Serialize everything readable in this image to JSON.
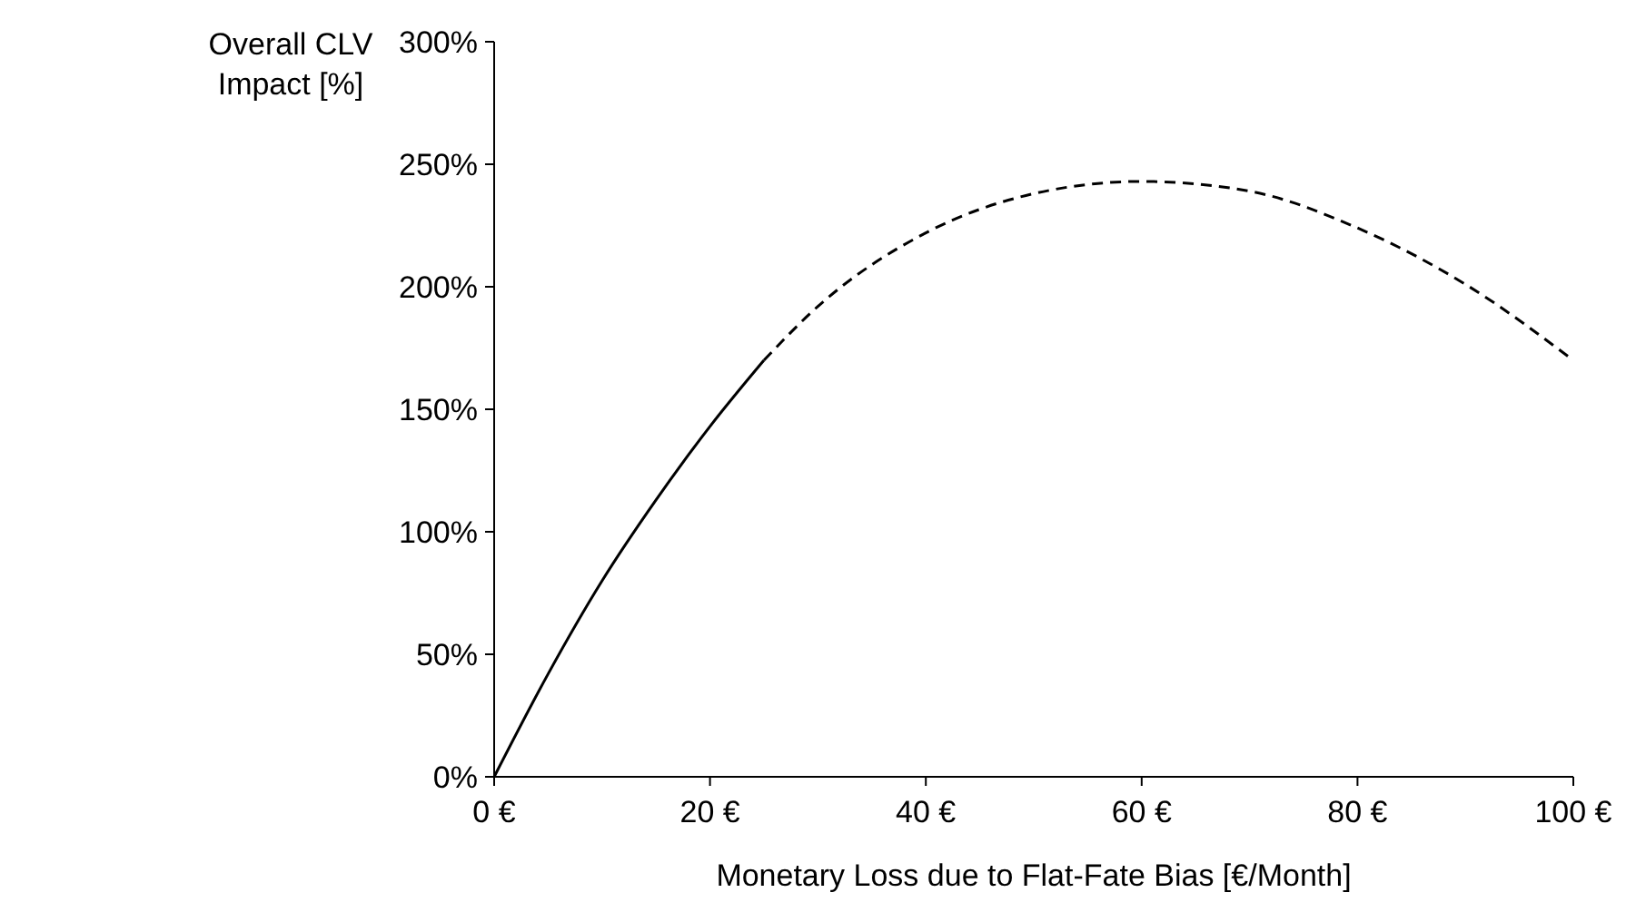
{
  "chart_data": {
    "type": "line",
    "xlabel": "Monetary Loss due to Flat-Fate Bias [€/Month]",
    "ylabel": "Overall CLV Impact [%]",
    "xlim": [
      0,
      100
    ],
    "ylim": [
      0,
      300
    ],
    "xticks": [
      {
        "value": 0,
        "label": "0 €"
      },
      {
        "value": 20,
        "label": "20 €"
      },
      {
        "value": 40,
        "label": "40 €"
      },
      {
        "value": 60,
        "label": "60 €"
      },
      {
        "value": 80,
        "label": "80 €"
      },
      {
        "value": 100,
        "label": "100 €"
      }
    ],
    "yticks": [
      {
        "value": 0,
        "label": "0%"
      },
      {
        "value": 50,
        "label": "50%"
      },
      {
        "value": 100,
        "label": "100%"
      },
      {
        "value": 150,
        "label": "150%"
      },
      {
        "value": 200,
        "label": "200%"
      },
      {
        "value": 250,
        "label": "250%"
      },
      {
        "value": 300,
        "label": "300%"
      }
    ],
    "grid": false,
    "series": [
      {
        "color": "#000000",
        "line_style": "solid",
        "x": [
          0,
          5,
          10,
          15,
          20,
          25
        ],
        "values": [
          0,
          42,
          80,
          113,
          143,
          170
        ]
      },
      {
        "color": "#000000",
        "line_style": "dashed",
        "x": [
          25,
          30,
          40,
          50,
          60,
          70,
          80,
          90,
          100
        ],
        "values": [
          170,
          192,
          222,
          238,
          243,
          239,
          224,
          201,
          170
        ]
      }
    ]
  }
}
